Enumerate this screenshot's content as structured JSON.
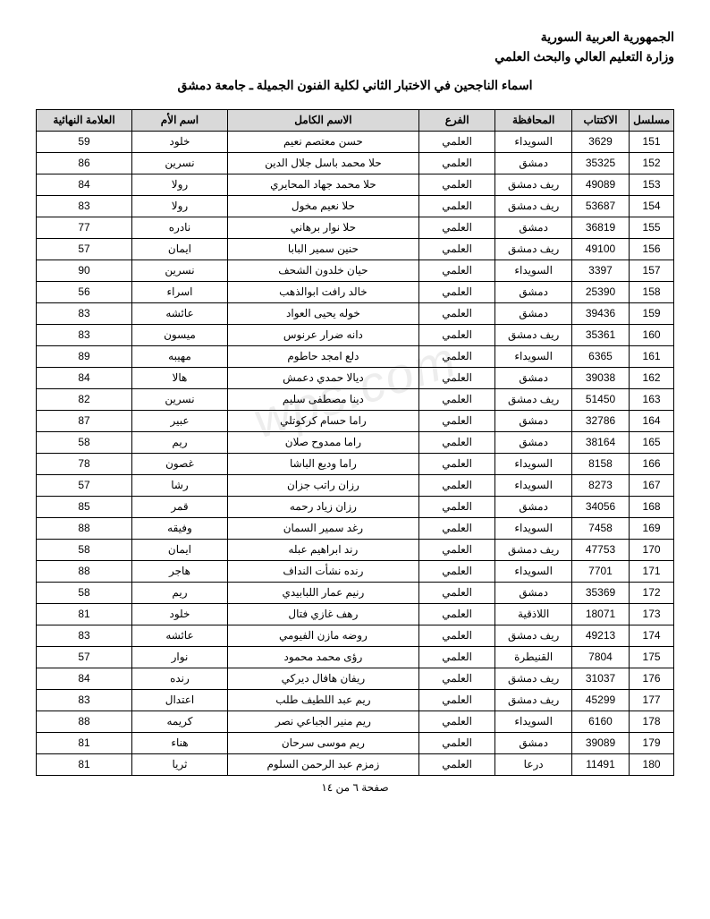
{
  "header": {
    "line1": "الجمهورية العربية السورية",
    "line2": "وزارة التعليم العالي والبحث العلمي"
  },
  "title": "اسماء الناجحين في الاختبار الثاني لكلية الفنون الجميلة ـ جامعة دمشق",
  "watermark": "wps.com",
  "columns": {
    "serial": "مسلسل",
    "sub": "الاكتتاب",
    "gov": "المحافظة",
    "branch": "الفرع",
    "name": "الاسم الكامل",
    "mother": "اسم الأم",
    "score": "العلامة النهائية"
  },
  "rows": [
    {
      "serial": "151",
      "sub": "3629",
      "gov": "السويداء",
      "branch": "العلمي",
      "name": "حسن معتصم نعيم",
      "mother": "خلود",
      "score": "59"
    },
    {
      "serial": "152",
      "sub": "35325",
      "gov": "دمشق",
      "branch": "العلمي",
      "name": "حلا محمد باسل جلال الدين",
      "mother": "نسرين",
      "score": "86"
    },
    {
      "serial": "153",
      "sub": "49089",
      "gov": "ريف دمشق",
      "branch": "العلمي",
      "name": "حلا محمد جهاد المحايري",
      "mother": "رولا",
      "score": "84"
    },
    {
      "serial": "154",
      "sub": "53687",
      "gov": "ريف دمشق",
      "branch": "العلمي",
      "name": "حلا نعيم مخول",
      "mother": "رولا",
      "score": "83"
    },
    {
      "serial": "155",
      "sub": "36819",
      "gov": "دمشق",
      "branch": "العلمي",
      "name": "حلا نوار برهاني",
      "mother": "نادره",
      "score": "77"
    },
    {
      "serial": "156",
      "sub": "49100",
      "gov": "ريف دمشق",
      "branch": "العلمي",
      "name": "حنين سمير البابا",
      "mother": "ايمان",
      "score": "57"
    },
    {
      "serial": "157",
      "sub": "3397",
      "gov": "السويداء",
      "branch": "العلمي",
      "name": "حيان خلدون الشحف",
      "mother": "نسرين",
      "score": "90"
    },
    {
      "serial": "158",
      "sub": "25390",
      "gov": "دمشق",
      "branch": "العلمي",
      "name": "خالد رافت ابوالذهب",
      "mother": "اسراء",
      "score": "56"
    },
    {
      "serial": "159",
      "sub": "39436",
      "gov": "دمشق",
      "branch": "العلمي",
      "name": "خوله يحيى العواد",
      "mother": "عائشه",
      "score": "83"
    },
    {
      "serial": "160",
      "sub": "35361",
      "gov": "ريف دمشق",
      "branch": "العلمي",
      "name": "دانه ضرار عرنوس",
      "mother": "ميسون",
      "score": "83"
    },
    {
      "serial": "161",
      "sub": "6365",
      "gov": "السويداء",
      "branch": "العلمي",
      "name": "دلع امجد حاطوم",
      "mother": "مهيبه",
      "score": "89"
    },
    {
      "serial": "162",
      "sub": "39038",
      "gov": "دمشق",
      "branch": "العلمي",
      "name": "ديالا حمدي دعمش",
      "mother": "هالا",
      "score": "84"
    },
    {
      "serial": "163",
      "sub": "51450",
      "gov": "ريف دمشق",
      "branch": "العلمي",
      "name": "دينا مصطفى سليم",
      "mother": "نسرين",
      "score": "82"
    },
    {
      "serial": "164",
      "sub": "32786",
      "gov": "دمشق",
      "branch": "العلمي",
      "name": "راما حسام كركوتلي",
      "mother": "عبير",
      "score": "87"
    },
    {
      "serial": "165",
      "sub": "38164",
      "gov": "دمشق",
      "branch": "العلمي",
      "name": "راما ممدوح صلان",
      "mother": "ريم",
      "score": "58"
    },
    {
      "serial": "166",
      "sub": "8158",
      "gov": "السويداء",
      "branch": "العلمي",
      "name": "راما وديع الباشا",
      "mother": "غصون",
      "score": "78"
    },
    {
      "serial": "167",
      "sub": "8273",
      "gov": "السويداء",
      "branch": "العلمي",
      "name": "رزان راتب جزان",
      "mother": "رشا",
      "score": "57"
    },
    {
      "serial": "168",
      "sub": "34056",
      "gov": "دمشق",
      "branch": "العلمي",
      "name": "رزان زياد رحمه",
      "mother": "قمر",
      "score": "85"
    },
    {
      "serial": "169",
      "sub": "7458",
      "gov": "السويداء",
      "branch": "العلمي",
      "name": "رغد سمير السمان",
      "mother": "وفيقه",
      "score": "88"
    },
    {
      "serial": "170",
      "sub": "47753",
      "gov": "ريف دمشق",
      "branch": "العلمي",
      "name": "رند ابراهيم عبله",
      "mother": "ايمان",
      "score": "58"
    },
    {
      "serial": "171",
      "sub": "7701",
      "gov": "السويداء",
      "branch": "العلمي",
      "name": "رنده نشأت النداف",
      "mother": "هاجر",
      "score": "88"
    },
    {
      "serial": "172",
      "sub": "35369",
      "gov": "دمشق",
      "branch": "العلمي",
      "name": "رنيم عمار اللبابيدي",
      "mother": "ريم",
      "score": "58"
    },
    {
      "serial": "173",
      "sub": "18071",
      "gov": "اللاذقية",
      "branch": "العلمي",
      "name": "رهف غازي فتال",
      "mother": "خلود",
      "score": "81"
    },
    {
      "serial": "174",
      "sub": "49213",
      "gov": "ريف دمشق",
      "branch": "العلمي",
      "name": "روضه مازن الفيومي",
      "mother": "عائشه",
      "score": "83"
    },
    {
      "serial": "175",
      "sub": "7804",
      "gov": "القنيطرة",
      "branch": "العلمي",
      "name": "رؤى محمد محمود",
      "mother": "نوار",
      "score": "57"
    },
    {
      "serial": "176",
      "sub": "31037",
      "gov": "ريف دمشق",
      "branch": "العلمي",
      "name": "ريفان هافال ديركي",
      "mother": "رنده",
      "score": "84"
    },
    {
      "serial": "177",
      "sub": "45299",
      "gov": "ريف دمشق",
      "branch": "العلمي",
      "name": "ريم عبد اللطيف طلب",
      "mother": "اعتدال",
      "score": "83"
    },
    {
      "serial": "178",
      "sub": "6160",
      "gov": "السويداء",
      "branch": "العلمي",
      "name": "ريم منير الجباعي نصر",
      "mother": "كريمه",
      "score": "88"
    },
    {
      "serial": "179",
      "sub": "39089",
      "gov": "دمشق",
      "branch": "العلمي",
      "name": "ريم موسى سرحان",
      "mother": "هناء",
      "score": "81"
    },
    {
      "serial": "180",
      "sub": "11491",
      "gov": "درعا",
      "branch": "العلمي",
      "name": "زمزم عبد الرحمن السلوم",
      "mother": "ثريا",
      "score": "81"
    }
  ],
  "footer": "صفحة ٦ من ١٤",
  "colors": {
    "header_bg": "#d9d9d9",
    "border": "#000000",
    "text": "#000000",
    "page_bg": "#ffffff"
  }
}
